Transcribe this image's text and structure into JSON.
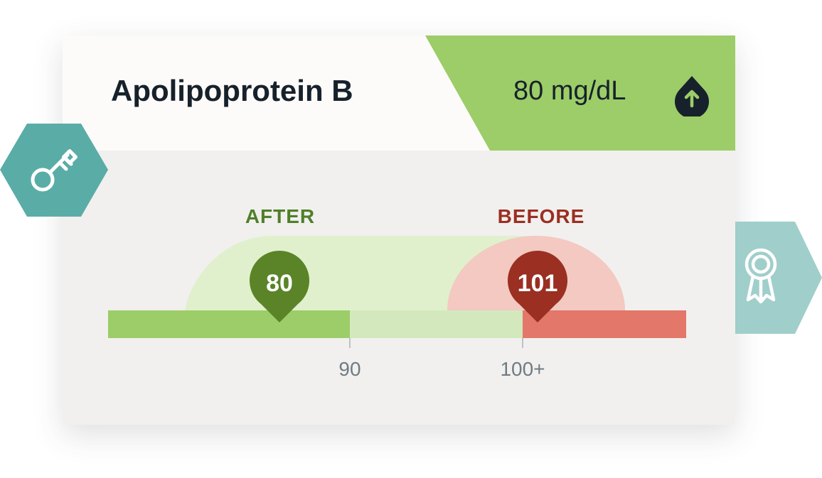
{
  "card": {
    "title": "Apolipoprotein B",
    "value": "80 mg/dL",
    "trend_icon": "arrow-up-drop-icon"
  },
  "gauge": {
    "after_label": "AFTER",
    "before_label": "BEFORE",
    "after_value": "80",
    "before_value": "101",
    "after_number": 80,
    "before_number": 101,
    "ticks": [
      "90",
      "100+"
    ]
  },
  "badges": {
    "left": "key-icon",
    "right": "award-ribbon-icon"
  },
  "colors": {
    "accent_green": "#9ccd68",
    "after_pin": "#5a8427",
    "before_pin": "#9a2f22",
    "range_light_green": "#d3e9bd",
    "range_red": "#e2776a",
    "badge_teal": "#5aaca7",
    "badge_teal_light": "#a0cecb"
  }
}
